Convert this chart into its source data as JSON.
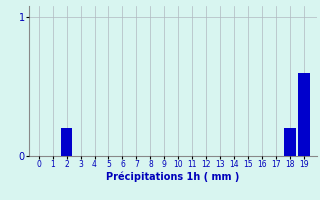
{
  "hours": [
    0,
    1,
    2,
    3,
    4,
    5,
    6,
    7,
    8,
    9,
    10,
    11,
    12,
    13,
    14,
    15,
    16,
    17,
    18,
    19
  ],
  "values": [
    0,
    0,
    0.2,
    0,
    0,
    0,
    0,
    0,
    0,
    0,
    0,
    0,
    0,
    0,
    0,
    0,
    0,
    0,
    0.2,
    0.6
  ],
  "bar_color": "#0000cc",
  "background_color": "#d8f5f0",
  "grid_color": "#b0b8c0",
  "xlabel": "Précipitations 1h ( mm )",
  "xlabel_color": "#0000bb",
  "tick_color": "#0000bb",
  "ylim": [
    0,
    1.08
  ],
  "xlim": [
    -0.7,
    19.9
  ],
  "yticks": [
    0,
    1
  ],
  "xtick_labels": [
    "0",
    "1",
    "2",
    "3",
    "4",
    "5",
    "6",
    "7",
    "8",
    "9",
    "10",
    "11",
    "12",
    "13",
    "14",
    "15",
    "16",
    "17",
    "18",
    "19"
  ],
  "bar_width": 0.85
}
